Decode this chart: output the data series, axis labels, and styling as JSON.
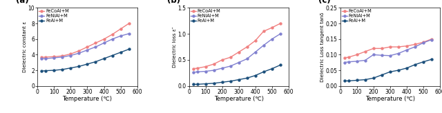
{
  "temp": [
    25,
    50,
    100,
    150,
    200,
    250,
    300,
    350,
    400,
    450,
    500,
    550
  ],
  "panel_labels": [
    "(a)",
    "(b)",
    "(c)"
  ],
  "legend_labels": [
    "FeCoAl+M",
    "FeNiAl+M",
    "FeAl+M"
  ],
  "colors": [
    "#F08080",
    "#8080D0",
    "#1A4E7A"
  ],
  "marker": "o",
  "markersize": 2.8,
  "linewidth": 1.0,
  "a_ylim": [
    0,
    10
  ],
  "a_yticks": [
    0,
    2,
    4,
    6,
    8,
    10
  ],
  "a_ylabel": "Dielectric constant ε",
  "a_FeCoAl": [
    3.65,
    3.7,
    3.75,
    3.85,
    4.1,
    4.5,
    5.0,
    5.5,
    6.0,
    6.6,
    7.3,
    8.0
  ],
  "a_FeNiAl": [
    3.5,
    3.5,
    3.6,
    3.7,
    3.9,
    4.2,
    4.6,
    5.0,
    5.5,
    6.0,
    6.4,
    6.7
  ],
  "a_FeAl": [
    1.9,
    1.95,
    2.0,
    2.1,
    2.3,
    2.5,
    2.8,
    3.1,
    3.5,
    3.9,
    4.3,
    4.7
  ],
  "b_ylim": [
    0,
    1.5
  ],
  "b_yticks": [
    0.0,
    0.5,
    1.0,
    1.5
  ],
  "b_ylabel": "Dielectric loss ε″",
  "b_FeCoAl": [
    0.33,
    0.34,
    0.37,
    0.42,
    0.5,
    0.55,
    0.65,
    0.75,
    0.87,
    1.05,
    1.12,
    1.2
  ],
  "b_FeNiAl": [
    0.26,
    0.27,
    0.28,
    0.3,
    0.34,
    0.38,
    0.45,
    0.52,
    0.65,
    0.78,
    0.9,
    1.0
  ],
  "b_FeAl": [
    0.03,
    0.03,
    0.04,
    0.05,
    0.07,
    0.09,
    0.12,
    0.15,
    0.2,
    0.27,
    0.33,
    0.4
  ],
  "c_ylim": [
    0.0,
    0.25
  ],
  "c_yticks": [
    0.0,
    0.05,
    0.1,
    0.15,
    0.2,
    0.25
  ],
  "c_ylabel": "Dielectric Loss tangent tanδ",
  "c_FeCoAl": [
    0.09,
    0.092,
    0.1,
    0.11,
    0.12,
    0.12,
    0.125,
    0.125,
    0.128,
    0.133,
    0.14,
    0.15
  ],
  "c_FeNiAl": [
    0.075,
    0.077,
    0.079,
    0.082,
    0.1,
    0.098,
    0.097,
    0.104,
    0.115,
    0.125,
    0.138,
    0.148
  ],
  "c_FeAl": [
    0.016,
    0.016,
    0.018,
    0.02,
    0.025,
    0.035,
    0.045,
    0.05,
    0.057,
    0.068,
    0.077,
    0.085
  ],
  "xlabel": "Temperature (℃)",
  "xlim": [
    0,
    600
  ],
  "xticks": [
    0,
    100,
    200,
    300,
    400,
    500,
    600
  ]
}
